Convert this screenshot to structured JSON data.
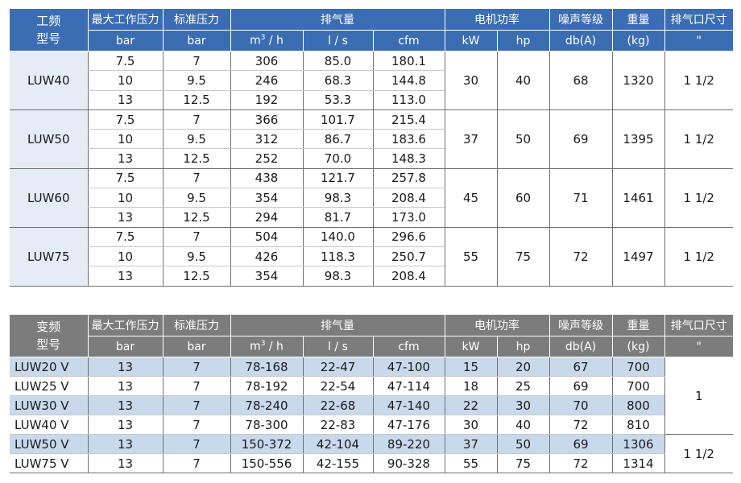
{
  "fixed_table": {
    "headers": {
      "model": [
        "工频",
        "型号"
      ],
      "max_pressure": "最大工作压力",
      "std_pressure": "标准压力",
      "air_delivery": "排气量",
      "motor_power": "电机功率",
      "noise": "噪声等级",
      "weight": "重量",
      "outlet": "排气口尺寸",
      "units": {
        "max_pressure": "bar",
        "std_pressure": "bar",
        "m3h_base": "m",
        "m3h_sup": "3",
        "m3h_rest": " / h",
        "ls": "l / s",
        "cfm": "cfm",
        "kw": "kW",
        "hp": "hp",
        "db": "db(A)",
        "kg": "(kg)",
        "inch": "\""
      }
    },
    "groups": [
      {
        "model": "LUW40",
        "kw": "30",
        "hp": "40",
        "db": "68",
        "kg": "1320",
        "outlet": "1  1/2",
        "rows": [
          [
            "7.5",
            "7",
            "306",
            "85.0",
            "180.1"
          ],
          [
            "10",
            "9.5",
            "246",
            "68.3",
            "144.8"
          ],
          [
            "13",
            "12.5",
            "192",
            "53.3",
            "113.0"
          ]
        ]
      },
      {
        "model": "LUW50",
        "kw": "37",
        "hp": "50",
        "db": "69",
        "kg": "1395",
        "outlet": "1  1/2",
        "rows": [
          [
            "7.5",
            "7",
            "366",
            "101.7",
            "215.4"
          ],
          [
            "10",
            "9.5",
            "312",
            "86.7",
            "183.6"
          ],
          [
            "13",
            "12.5",
            "252",
            "70.0",
            "148.3"
          ]
        ]
      },
      {
        "model": "LUW60",
        "kw": "45",
        "hp": "60",
        "db": "71",
        "kg": "1461",
        "outlet": "1  1/2",
        "rows": [
          [
            "7.5",
            "7",
            "438",
            "121.7",
            "257.8"
          ],
          [
            "10",
            "9.5",
            "354",
            "98.3",
            "208.4"
          ],
          [
            "13",
            "12.5",
            "294",
            "81.7",
            "173.0"
          ]
        ]
      },
      {
        "model": "LUW75",
        "kw": "55",
        "hp": "75",
        "db": "72",
        "kg": "1497",
        "outlet": "1  1/2",
        "rows": [
          [
            "7.5",
            "7",
            "504",
            "140.0",
            "296.6"
          ],
          [
            "10",
            "9.5",
            "426",
            "118.3",
            "250.7"
          ],
          [
            "13",
            "12.5",
            "354",
            "98.3",
            "208.4"
          ]
        ]
      }
    ]
  },
  "variable_table": {
    "headers": {
      "model": [
        "变频",
        "型号"
      ],
      "max_pressure": "最大工作压力",
      "std_pressure": "标准压力",
      "air_delivery": "排气量",
      "motor_power": "电机功率",
      "noise": "噪声等级",
      "weight": "重量",
      "outlet": "排气口尺寸",
      "units": {
        "max_pressure": "bar",
        "std_pressure": "bar",
        "m3h_base": "m",
        "m3h_sup": "3",
        "m3h_rest": " / h",
        "ls": "l / s",
        "cfm": "cfm",
        "kw": "kW",
        "hp": "hp",
        "db": "db(A)",
        "kg": "(kg)",
        "inch": "\""
      }
    },
    "rows": [
      [
        "LUW20 V",
        "13",
        "7",
        "78-168",
        "22-47",
        "47-100",
        "15",
        "20",
        "67",
        "700"
      ],
      [
        "LUW25 V",
        "13",
        "7",
        "78-192",
        "22-54",
        "47-114",
        "18",
        "25",
        "69",
        "700"
      ],
      [
        "LUW30 V",
        "13",
        "7",
        "78-240",
        "22-68",
        "47-140",
        "22",
        "30",
        "70",
        "800"
      ],
      [
        "LUW40 V",
        "13",
        "7",
        "78-300",
        "22-83",
        "47-176",
        "30",
        "40",
        "72",
        "810"
      ],
      [
        "LUW50 V",
        "13",
        "7",
        "150-372",
        "42-104",
        "89-220",
        "37",
        "50",
        "69",
        "1306"
      ],
      [
        "LUW75 V",
        "13",
        "7",
        "150-556",
        "42-155",
        "90-328",
        "55",
        "75",
        "72",
        "1314"
      ]
    ],
    "outlet_groups": [
      "1",
      "1  1/2"
    ]
  },
  "colors": {
    "fixed_header": "#3b6db3",
    "variable_header": "#7c7c7c",
    "model_cell": "#e4ecf6",
    "row_shade": "#c9d9ec"
  }
}
